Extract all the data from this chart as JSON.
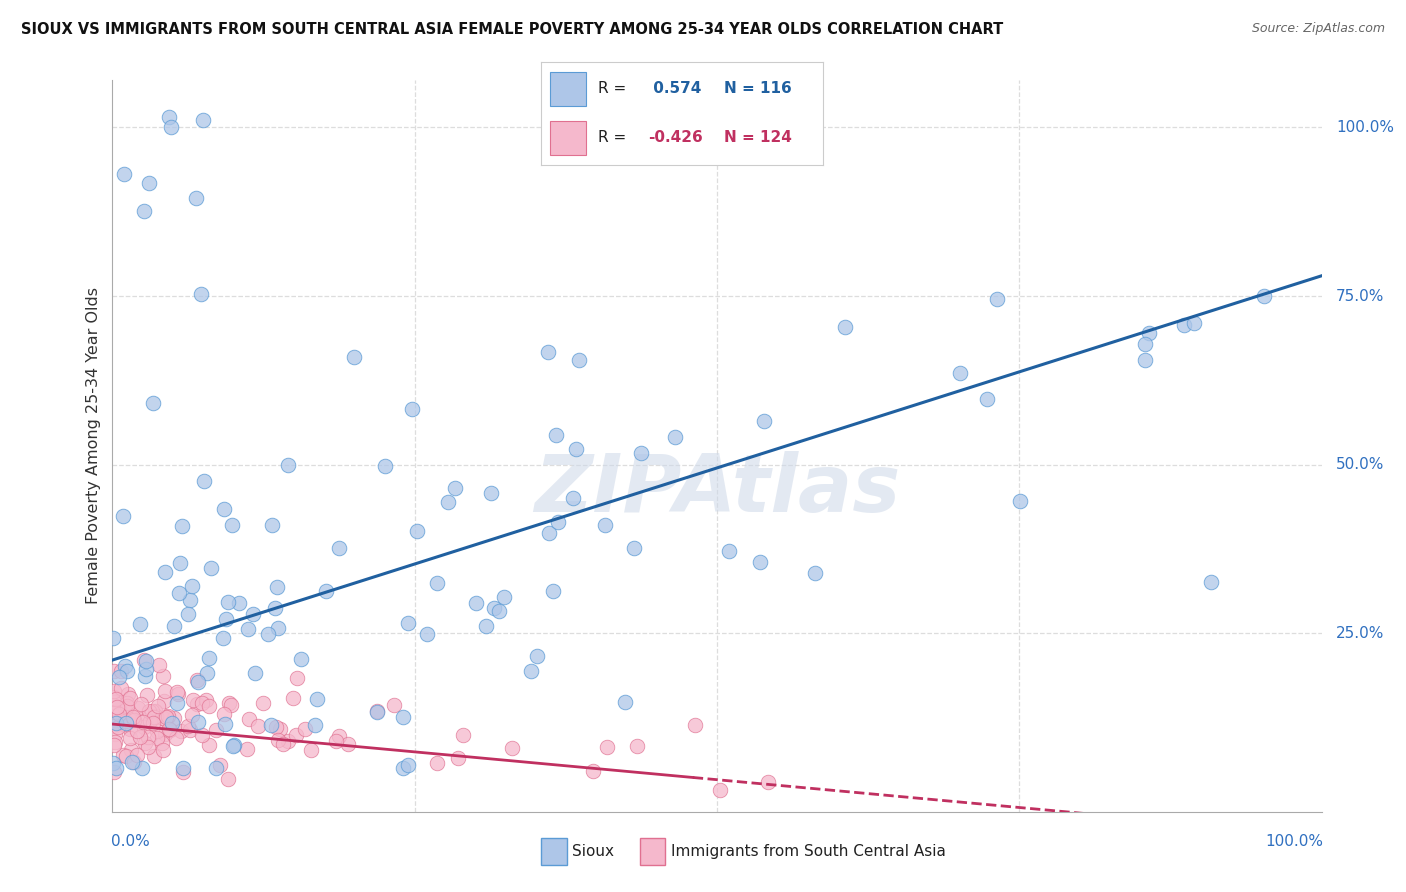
{
  "title": "SIOUX VS IMMIGRANTS FROM SOUTH CENTRAL ASIA FEMALE POVERTY AMONG 25-34 YEAR OLDS CORRELATION CHART",
  "source": "Source: ZipAtlas.com",
  "ylabel": "Female Poverty Among 25-34 Year Olds",
  "sioux_R": 0.574,
  "sioux_N": 116,
  "immig_R": -0.426,
  "immig_N": 124,
  "sioux_color": "#aec6e8",
  "sioux_edge_color": "#5b9bd5",
  "sioux_line_color": "#2060a0",
  "immig_color": "#f5b8cc",
  "immig_edge_color": "#e07090",
  "immig_line_color": "#c03060",
  "watermark": "ZIPAtlas",
  "background_color": "#ffffff",
  "legend_label_sioux": "Sioux",
  "legend_label_immig": "Immigrants from South Central Asia",
  "grid_color": "#dddddd",
  "axis_color": "#aaaaaa",
  "label_color": "#3070c0",
  "title_color": "#111111",
  "source_color": "#666666"
}
